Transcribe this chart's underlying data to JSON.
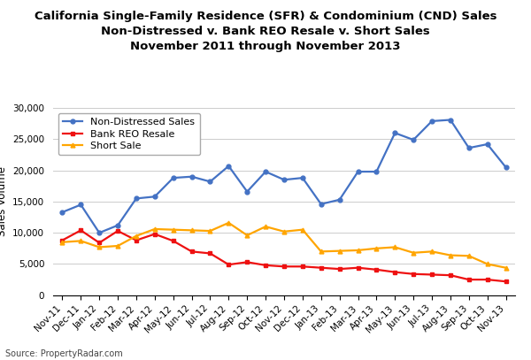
{
  "title_line1": "California Single-Family Residence (SFR) & Condominium (CND) Sales",
  "title_line2": "Non-Distressed v. Bank REO Resale v. Short Sales",
  "title_line3": "November 2011 through November 2013",
  "ylabel": "Sales Volume",
  "source": "Source: PropertyRadar.com",
  "labels": [
    "Nov-11",
    "Dec-11",
    "Jan-12",
    "Feb-12",
    "Mar-12",
    "Apr-12",
    "May-12",
    "Jun-12",
    "Jul-12",
    "Aug-12",
    "Sep-12",
    "Oct-12",
    "Nov-12",
    "Dec-12",
    "Jan-13",
    "Feb-13",
    "Mar-13",
    "Apr-13",
    "May-13",
    "Jun-13",
    "Jul-13",
    "Aug-13",
    "Sep-13",
    "Oct-13",
    "Nov-13"
  ],
  "non_distressed": [
    13300,
    14500,
    10000,
    11200,
    15500,
    15800,
    18800,
    19000,
    18200,
    20700,
    16600,
    19800,
    18500,
    18800,
    14600,
    15300,
    19800,
    19800,
    26000,
    24900,
    27900,
    28100,
    23600,
    24200,
    20500
  ],
  "bank_reo": [
    8800,
    10400,
    8400,
    10300,
    8800,
    9800,
    8700,
    7000,
    6700,
    4900,
    5300,
    4800,
    4600,
    4600,
    4400,
    4200,
    4400,
    4100,
    3700,
    3400,
    3300,
    3200,
    2500,
    2500,
    2200
  ],
  "short_sale": [
    8500,
    8700,
    7700,
    7900,
    9500,
    10600,
    10500,
    10400,
    10300,
    11600,
    9600,
    11000,
    10200,
    10500,
    7000,
    7100,
    7200,
    7500,
    7700,
    6800,
    7000,
    6400,
    6300,
    5000,
    4400
  ],
  "non_distressed_color": "#4472C4",
  "bank_reo_color": "#EE1111",
  "short_sale_color": "#FFA500",
  "ylim": [
    0,
    30000
  ],
  "yticks": [
    0,
    5000,
    10000,
    15000,
    20000,
    25000,
    30000
  ],
  "bg_color": "#FFFFFF",
  "grid_color": "#CCCCCC",
  "title_fontsize": 9.5,
  "axis_label_fontsize": 8.5,
  "tick_fontsize": 7.5,
  "legend_fontsize": 8
}
